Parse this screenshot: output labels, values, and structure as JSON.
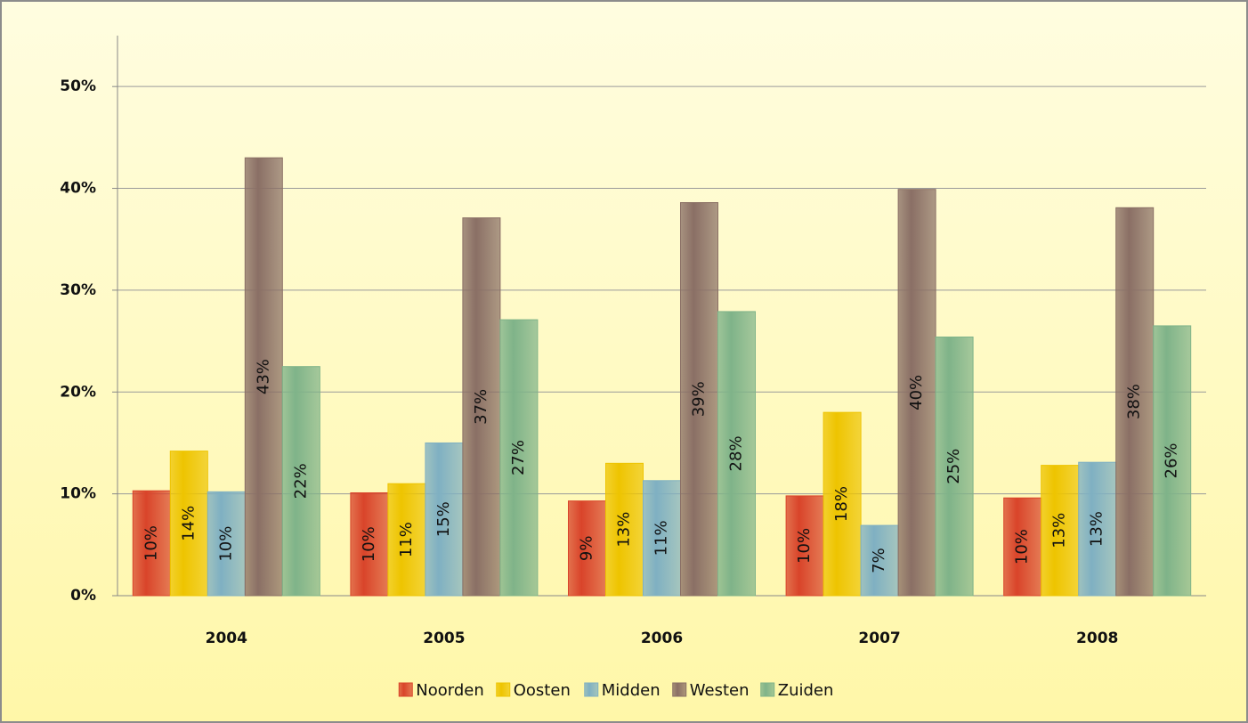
{
  "chart_data": {
    "type": "bar",
    "categories": [
      "2004",
      "2005",
      "2006",
      "2007",
      "2008"
    ],
    "series": [
      {
        "name": "Noorden",
        "color": "#d9442a",
        "values": [
          10.3,
          10.1,
          9.3,
          9.8,
          9.6
        ],
        "value_labels": [
          "10%",
          "10%",
          "9%",
          "10%",
          "10%"
        ]
      },
      {
        "name": "Oosten",
        "color": "#eec400",
        "values": [
          14.2,
          11.0,
          13.0,
          18.0,
          12.8
        ],
        "value_labels": [
          "14%",
          "11%",
          "13%",
          "18%",
          "13%"
        ]
      },
      {
        "name": "Midden",
        "color": "#7fb0c2",
        "values": [
          10.2,
          15.0,
          11.3,
          6.9,
          13.1
        ],
        "value_labels": [
          "10%",
          "15%",
          "11%",
          "7%",
          "13%"
        ]
      },
      {
        "name": "Westen",
        "color": "#8a6f65",
        "values": [
          43.0,
          37.1,
          38.6,
          39.9,
          38.1
        ],
        "value_labels": [
          "43%",
          "37%",
          "39%",
          "40%",
          "38%"
        ]
      },
      {
        "name": "Zuiden",
        "color": "#7fb389",
        "values": [
          22.5,
          27.1,
          27.9,
          25.4,
          26.5
        ],
        "value_labels": [
          "22%",
          "27%",
          "28%",
          "25%",
          "26%"
        ]
      }
    ],
    "ylim": [
      0,
      55
    ],
    "yticks": [
      {
        "value": 0,
        "label": "0%"
      },
      {
        "value": 10,
        "label": "10%"
      },
      {
        "value": 20,
        "label": "20%"
      },
      {
        "value": 30,
        "label": "30%"
      },
      {
        "value": 40,
        "label": "40%"
      },
      {
        "value": 50,
        "label": "50%"
      }
    ],
    "grid": true,
    "legend": "bottom"
  }
}
